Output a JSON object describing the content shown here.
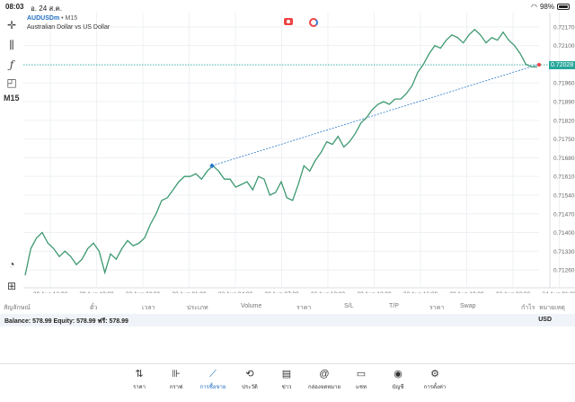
{
  "status_bar": {
    "time": "08:03",
    "date": "อ. 24 ส.ค.",
    "battery": "98%"
  },
  "symbol": {
    "name": "AUDUSDm",
    "separator": "•",
    "timeframe": "M15",
    "description": "Australian Dollar vs US Dollar"
  },
  "toolbar": {
    "timeframe_label": "M15"
  },
  "chart": {
    "current_price": "0.72028",
    "price_labels": [
      "0.72170",
      "0.72100",
      "0.72028",
      "0.71960",
      "0.71890",
      "0.71820",
      "0.71750",
      "0.71680",
      "0.71610",
      "0.71540",
      "0.71470",
      "0.71400",
      "0.71330",
      "0.71260"
    ],
    "time_labels": [
      "20 Aug 16:00",
      "20 Aug 19:00",
      "22 Aug 22:00",
      "23 Aug 01:00",
      "23 Aug 04:00",
      "23 Aug 07:00",
      "23 Aug 10:00",
      "23 Aug 13:00",
      "23 Aug 16:00",
      "23 Aug 19:00",
      "23 Aug 22:00",
      "24 Aug 01:00"
    ]
  },
  "chart_data": {
    "type": "line",
    "title": "AUDUSDm, M15",
    "ylim": [
      0.7122,
      0.7221
    ],
    "grid": true,
    "series": [
      {
        "name": "AUDUSDm",
        "values": [
          0.7124,
          0.7134,
          0.7138,
          0.714,
          0.7136,
          0.7134,
          0.7131,
          0.7133,
          0.7131,
          0.7128,
          0.713,
          0.7134,
          0.7136,
          0.7133,
          0.7125,
          0.7132,
          0.713,
          0.7134,
          0.7137,
          0.7135,
          0.7136,
          0.7138,
          0.7143,
          0.7147,
          0.7152,
          0.7153,
          0.7156,
          0.7159,
          0.7161,
          0.7161,
          0.7162,
          0.716,
          0.7163,
          0.7165,
          0.7163,
          0.716,
          0.716,
          0.7157,
          0.7158,
          0.7159,
          0.7156,
          0.7161,
          0.716,
          0.7154,
          0.7155,
          0.7159,
          0.7153,
          0.7152,
          0.7158,
          0.7165,
          0.7163,
          0.7167,
          0.717,
          0.7174,
          0.7173,
          0.7176,
          0.7172,
          0.7174,
          0.7177,
          0.7181,
          0.7183,
          0.7186,
          0.7188,
          0.7189,
          0.7188,
          0.719,
          0.719,
          0.7192,
          0.7195,
          0.72,
          0.7203,
          0.7207,
          0.721,
          0.7209,
          0.7212,
          0.7214,
          0.7213,
          0.7211,
          0.7214,
          0.7216,
          0.7214,
          0.7211,
          0.7213,
          0.7212,
          0.7215,
          0.7212,
          0.721,
          0.7207,
          0.7203,
          0.7202,
          0.7202
        ]
      }
    ],
    "trendline": {
      "from": 0.7165,
      "to": 0.72028
    },
    "current_price": 0.72028
  },
  "columns": [
    "สัญลักษณ์",
    "ตั๋ว",
    "เวลา",
    "ประเภท",
    "Volume",
    "ราคา",
    "S/L",
    "T/P",
    "ราคา",
    "Swap",
    "กำไร",
    "หมายเหตุ"
  ],
  "account": {
    "balance_text": "Balance: 578.99 Equity: 578.99 ฟรี: 578.99",
    "currency": "USD"
  },
  "tabs": [
    {
      "label": "ราคา",
      "icon": "⇅"
    },
    {
      "label": "กราฟ",
      "icon": "⊪"
    },
    {
      "label": "การซื้อขาย",
      "icon": "⟋"
    },
    {
      "label": "ประวัติ",
      "icon": "⟲"
    },
    {
      "label": "ข่าว",
      "icon": "▤"
    },
    {
      "label": "กล่องจดหมาย",
      "icon": "@"
    },
    {
      "label": "แชท",
      "icon": "▭"
    },
    {
      "label": "บัญชี",
      "icon": "◉"
    },
    {
      "label": "การตั้งค่า",
      "icon": "⚙"
    }
  ],
  "colors": {
    "line": "#3d9970",
    "accent": "#1f6fc2",
    "trend": "#2b79c9",
    "price_tag": "#26a69a"
  }
}
